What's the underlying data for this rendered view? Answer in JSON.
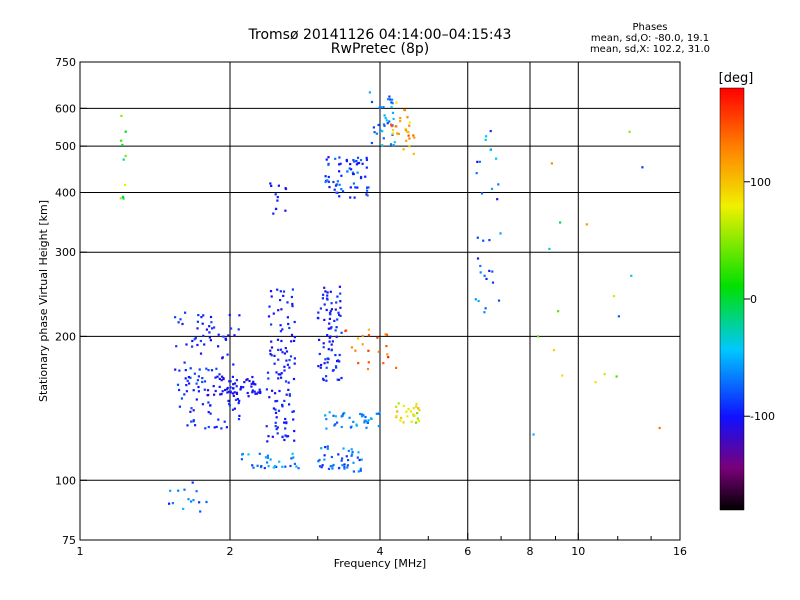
{
  "title": {
    "line1": "Tromsø 20141126 04:14:00–04:15:43",
    "line2": "RwPretec (8p)"
  },
  "stats": {
    "heading": "Phases",
    "line1": "mean, sd,O: -80.0, 19.1",
    "line2": "mean, sd,X: 102.2, 31.0"
  },
  "chart_data": {
    "type": "scatter",
    "xlabel": "Frequency [MHz]",
    "ylabel": "Stationary phase Virtual Height [km]",
    "xscale": "log",
    "yscale": "log",
    "xlim": [
      1,
      16
    ],
    "ylim": [
      75,
      750
    ],
    "xticks": [
      1,
      2,
      4,
      6,
      8,
      10,
      16
    ],
    "xtick_labels": [
      "1",
      "2",
      "4",
      "6",
      "8",
      "10",
      "16"
    ],
    "yticks": [
      75,
      100,
      200,
      300,
      400,
      500,
      600,
      750
    ],
    "ytick_labels": [
      "75",
      "100",
      "200",
      "300",
      "400",
      "500",
      "600",
      "750"
    ],
    "x_gridlines": [
      2,
      4,
      6,
      8,
      10
    ],
    "y_gridlines": [
      100,
      200,
      300,
      400,
      500,
      600
    ],
    "minor_xticks": [
      3,
      5,
      7,
      9,
      12,
      14
    ],
    "color_axis": {
      "label": "[deg]",
      "range": [
        -180,
        180
      ],
      "ticks": [
        100,
        0,
        -100
      ],
      "tick_labels": [
        "100",
        "0",
        "-100"
      ],
      "colormap": "rainbow (black → violet → blue → cyan → green → yellow → red)"
    },
    "series": [
      {
        "clusters": [
          {
            "x": [
              1.55,
              2.1
            ],
            "y": [
              128,
              225
            ],
            "phase": [
              -110,
              -80
            ],
            "n": 120
          },
          {
            "x": [
              1.8,
              2.3
            ],
            "y": [
              150,
              165
            ],
            "phase": [
              -115,
              -95
            ],
            "n": 60
          },
          {
            "x": [
              2.35,
              2.7
            ],
            "y": [
              120,
              255
            ],
            "phase": [
              -110,
              -85
            ],
            "n": 110
          },
          {
            "x": [
              3.0,
              3.35
            ],
            "y": [
              160,
              255
            ],
            "phase": [
              -110,
              -80
            ],
            "n": 80
          },
          {
            "x": [
              3.0,
              3.7
            ],
            "y": [
              104,
              118
            ],
            "phase": [
              -100,
              -45
            ],
            "n": 45
          },
          {
            "x": [
              2.1,
              2.75
            ],
            "y": [
              106,
              114
            ],
            "phase": [
              -90,
              -40
            ],
            "n": 30
          },
          {
            "x": [
              3.05,
              4.0
            ],
            "y": [
              128,
              140
            ],
            "phase": [
              -80,
              -45
            ],
            "n": 40
          },
          {
            "x": [
              4.3,
              4.8
            ],
            "y": [
              130,
              145
            ],
            "phase": [
              40,
              110
            ],
            "n": 28
          },
          {
            "x": [
              3.1,
              3.8
            ],
            "y": [
              390,
              475
            ],
            "phase": [
              -110,
              -60
            ],
            "n": 65
          },
          {
            "x": [
              3.7,
              4.3
            ],
            "y": [
              500,
              650
            ],
            "phase": [
              -90,
              -40
            ],
            "n": 35
          },
          {
            "x": [
              4.2,
              4.7
            ],
            "y": [
              480,
              620
            ],
            "phase": [
              80,
              150
            ],
            "n": 28
          },
          {
            "x": [
              2.4,
              2.6
            ],
            "y": [
              360,
              420
            ],
            "phase": [
              -110,
              -90
            ],
            "n": 12
          },
          {
            "x": [
              3.4,
              4.4
            ],
            "y": [
              170,
              210
            ],
            "phase": [
              100,
              170
            ],
            "n": 22
          },
          {
            "x": [
              1.5,
              1.8
            ],
            "y": [
              85,
              100
            ],
            "phase": [
              -100,
              -40
            ],
            "n": 14
          },
          {
            "x": [
              6.2,
              7.0
            ],
            "y": [
              220,
              540
            ],
            "phase": [
              -120,
              -40
            ],
            "n": 30
          },
          {
            "x": [
              1.2,
              1.25
            ],
            "y": [
              360,
              600
            ],
            "phase": [
              -40,
              80
            ],
            "n": 10
          },
          {
            "x": [
              8.0,
              15.0
            ],
            "y": [
              120,
              620
            ],
            "phase": [
              -110,
              160
            ],
            "n": 18
          }
        ]
      }
    ]
  }
}
